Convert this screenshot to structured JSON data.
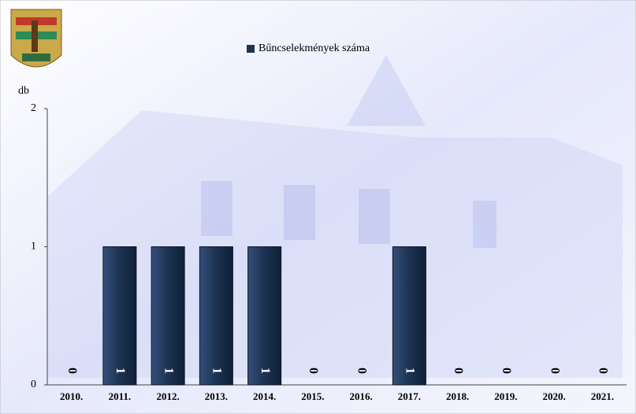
{
  "chart_data": {
    "type": "bar",
    "title": "Bűncselekmények száma",
    "y_label": "db",
    "categories": [
      "2010.",
      "2011.",
      "2012.",
      "2013.",
      "2014.",
      "2015.",
      "2016.",
      "2017.",
      "2018.",
      "2019.",
      "2020.",
      "2021."
    ],
    "values": [
      0,
      1,
      1,
      1,
      1,
      0,
      0,
      1,
      0,
      0,
      0,
      0
    ],
    "color": "#1c3352",
    "ylim": [
      0,
      2
    ],
    "yticks": [
      0,
      1,
      2
    ],
    "grid": false,
    "legend": "top"
  }
}
